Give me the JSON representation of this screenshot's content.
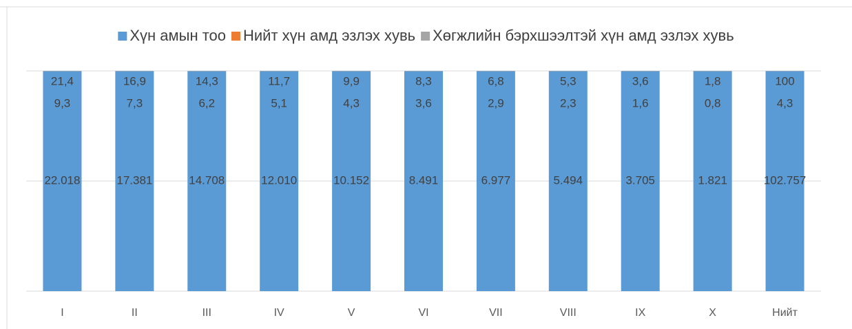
{
  "chart_data": {
    "type": "bar",
    "stacked": "percent",
    "categories": [
      "I",
      "II",
      "III",
      "IV",
      "V",
      "VI",
      "VII",
      "VIII",
      "IX",
      "X",
      "Нийт"
    ],
    "series": [
      {
        "name": "Хүн амын тоо",
        "color": "#5b9bd5",
        "values": [
          22018,
          17381,
          14708,
          12010,
          10152,
          8491,
          6977,
          5494,
          3705,
          1821,
          102757
        ],
        "value_labels": [
          "22.018",
          "17.381",
          "14.708",
          "12.010",
          "10.152",
          "8.491",
          "6.977",
          "5.494",
          "3.705",
          "1.821",
          "102.757"
        ]
      },
      {
        "name": "Нийт хүн амд эзлэх хувь",
        "color": "#ed7d31",
        "values": [
          9.3,
          7.3,
          6.2,
          5.1,
          4.3,
          3.6,
          2.9,
          2.3,
          1.6,
          0.8,
          4.3
        ],
        "value_labels": [
          "9,3",
          "7,3",
          "6,2",
          "5,1",
          "4,3",
          "3,6",
          "2,9",
          "2,3",
          "1,6",
          "0,8",
          "4,3"
        ]
      },
      {
        "name": "Хөгжлийн бэрхшээлтэй хүн амд эзлэх хувь",
        "color": "#a5a5a5",
        "values": [
          21.4,
          16.9,
          14.3,
          11.7,
          9.9,
          8.3,
          6.8,
          5.3,
          3.6,
          1.8,
          100
        ],
        "value_labels": [
          "21,4",
          "16,9",
          "14,3",
          "11,7",
          "9,9",
          "8,3",
          "6,8",
          "5,3",
          "3,6",
          "1,8",
          "100"
        ]
      }
    ],
    "ylim": [
      0,
      100
    ],
    "yticks": [
      0,
      50,
      100
    ],
    "grid": true,
    "legend": "top"
  }
}
